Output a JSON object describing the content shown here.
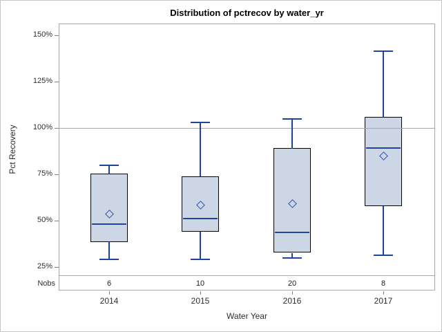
{
  "window": {
    "background": "#ffffff",
    "border_color": "#c6c6c6"
  },
  "chart_data": {
    "type": "boxplot",
    "title": "Distribution of pctrecov by water_yr",
    "xlabel": "Water Year",
    "ylabel": "Pct Recovery",
    "categories": [
      "2014",
      "2015",
      "2016",
      "2017"
    ],
    "nobs_label": "Nobs",
    "nobs": [
      "6",
      "10",
      "20",
      "8"
    ],
    "yticks": [
      {
        "value": 150,
        "label": "150%"
      },
      {
        "value": 125,
        "label": "125%"
      },
      {
        "value": 100,
        "label": "100%"
      },
      {
        "value": 75,
        "label": "75%"
      },
      {
        "value": 50,
        "label": "50%"
      },
      {
        "value": 25,
        "label": "25%"
      }
    ],
    "ylim": [
      20,
      157
    ],
    "refline": {
      "value": 100
    },
    "grid": false,
    "legend": false,
    "series": [
      {
        "category": "2014",
        "whisker_low": 29,
        "q1": 38.5,
        "median": 48,
        "mean": 53.5,
        "q3": 75.5,
        "whisker_high": 80,
        "nobs": 6
      },
      {
        "category": "2015",
        "whisker_low": 29,
        "q1": 44,
        "median": 51,
        "mean": 58.5,
        "q3": 74,
        "whisker_high": 103,
        "nobs": 10
      },
      {
        "category": "2016",
        "whisker_low": 30,
        "q1": 32.5,
        "median": 43.5,
        "mean": 59,
        "q3": 89,
        "whisker_high": 105,
        "nobs": 20
      },
      {
        "category": "2017",
        "whisker_low": 31.5,
        "q1": 58,
        "median": 89,
        "mean": 85,
        "q3": 106,
        "whisker_high": 141.5,
        "nobs": 8
      }
    ],
    "colors": {
      "box_fill": "#ccd6e4",
      "box_border": "#000000",
      "whisker": "#1e459b",
      "median": "#1e459b",
      "mean_marker": "#2a52a8",
      "refline": "#a6a6a6",
      "frame": "#a8a8a8",
      "tick": "#808080",
      "text": "#2e2e2e",
      "title": "#000000"
    }
  }
}
